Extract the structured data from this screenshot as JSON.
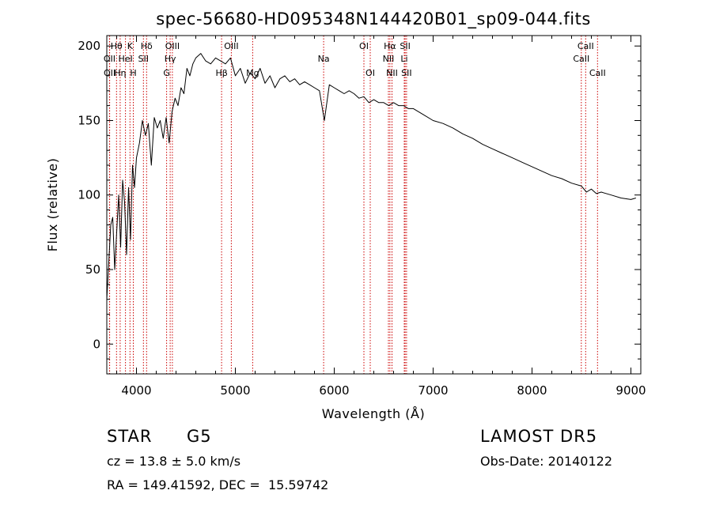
{
  "chart_data": {
    "type": "line",
    "title": "spec-56680-HD095348N144420B01_sp09-044.fits",
    "xlabel": "Wavelength (Å)",
    "ylabel": "Flux (relative)",
    "xlim": [
      3700,
      9100
    ],
    "ylim": [
      -20,
      207
    ],
    "x_ticks": [
      4000,
      5000,
      6000,
      7000,
      8000,
      9000
    ],
    "y_ticks": [
      0,
      50,
      100,
      150,
      200
    ],
    "grid": false,
    "legend": "none",
    "series": [
      {
        "x": [
          3700,
          3720,
          3740,
          3760,
          3780,
          3800,
          3820,
          3840,
          3860,
          3880,
          3900,
          3920,
          3940,
          3960,
          3980,
          4000,
          4030,
          4060,
          4090,
          4120,
          4150,
          4180,
          4210,
          4240,
          4270,
          4300,
          4330,
          4360,
          4390,
          4420,
          4450,
          4480,
          4510,
          4540,
          4570,
          4600,
          4650,
          4700,
          4750,
          4800,
          4850,
          4900,
          4950,
          5000,
          5050,
          5100,
          5150,
          5200,
          5250,
          5300,
          5350,
          5400,
          5450,
          5500,
          5550,
          5600,
          5650,
          5700,
          5750,
          5800,
          5850,
          5900,
          5950,
          6000,
          6050,
          6100,
          6150,
          6200,
          6250,
          6300,
          6350,
          6400,
          6450,
          6500,
          6550,
          6600,
          6650,
          6700,
          6750,
          6800,
          6900,
          7000,
          7100,
          7200,
          7300,
          7400,
          7500,
          7600,
          7700,
          7800,
          7900,
          8000,
          8100,
          8200,
          8300,
          8400,
          8500,
          8550,
          8600,
          8650,
          8700,
          8800,
          8900,
          9000,
          9050
        ],
        "y": [
          30,
          55,
          80,
          85,
          50,
          75,
          100,
          65,
          110,
          95,
          60,
          105,
          70,
          120,
          105,
          125,
          135,
          150,
          140,
          148,
          120,
          152,
          145,
          150,
          138,
          152,
          135,
          156,
          165,
          160,
          172,
          168,
          185,
          180,
          188,
          192,
          195,
          190,
          188,
          192,
          190,
          188,
          192,
          180,
          185,
          175,
          182,
          178,
          185,
          175,
          180,
          172,
          178,
          180,
          176,
          178,
          174,
          176,
          174,
          172,
          170,
          150,
          174,
          172,
          170,
          168,
          170,
          168,
          165,
          166,
          162,
          164,
          162,
          162,
          160,
          162,
          160,
          160,
          158,
          158,
          154,
          150,
          148,
          145,
          141,
          138,
          134,
          131,
          128,
          125,
          122,
          119,
          116,
          113,
          111,
          108,
          106,
          102,
          104,
          101,
          102,
          100,
          98,
          97,
          98
        ]
      }
    ],
    "line_labels": [
      {
        "name": "Hθ",
        "wave": 3798,
        "row": 0
      },
      {
        "name": "OII",
        "wave": 3727,
        "row": 1
      },
      {
        "name": "OII",
        "wave": 3729,
        "row": 2
      },
      {
        "name": "K",
        "wave": 3934,
        "row": 0
      },
      {
        "name": "HeI",
        "wave": 3889,
        "row": 1
      },
      {
        "name": "Hη",
        "wave": 3835,
        "row": 2
      },
      {
        "name": "Hδ",
        "wave": 4102,
        "row": 0
      },
      {
        "name": "SII",
        "wave": 4070,
        "row": 1
      },
      {
        "name": "H",
        "wave": 3968,
        "row": 2
      },
      {
        "name": "OIII",
        "wave": 4363,
        "row": 0
      },
      {
        "name": "Hγ",
        "wave": 4341,
        "row": 1
      },
      {
        "name": "G",
        "wave": 4305,
        "row": 2
      },
      {
        "name": "OIII",
        "wave": 4959,
        "row": 0
      },
      {
        "name": "Hβ",
        "wave": 4861,
        "row": 2
      },
      {
        "name": "Mg",
        "wave": 5175,
        "row": 2
      },
      {
        "name": "Na",
        "wave": 5893,
        "row": 1
      },
      {
        "name": "OI",
        "wave": 6300,
        "row": 0
      },
      {
        "name": "OI",
        "wave": 6364,
        "row": 2
      },
      {
        "name": "Hα",
        "wave": 6563,
        "row": 0
      },
      {
        "name": "NII",
        "wave": 6548,
        "row": 1
      },
      {
        "name": "NII",
        "wave": 6584,
        "row": 2
      },
      {
        "name": "SII",
        "wave": 6717,
        "row": 0
      },
      {
        "name": "Li",
        "wave": 6708,
        "row": 1
      },
      {
        "name": "SII",
        "wave": 6731,
        "row": 2
      },
      {
        "name": "CaII",
        "wave": 8542,
        "row": 0
      },
      {
        "name": "CaII",
        "wave": 8498,
        "row": 1
      },
      {
        "name": "CaII",
        "wave": 8662,
        "row": 2
      }
    ],
    "line_marker_color": "#cc0000"
  },
  "info": {
    "class": "STAR",
    "subclass": "G5",
    "survey": "LAMOST DR5",
    "cz": "cz = 13.8 ± 5.0 km/s",
    "obs_date": "Obs-Date: 20140122",
    "radec": "RA = 149.41592, DEC =  15.59742"
  }
}
